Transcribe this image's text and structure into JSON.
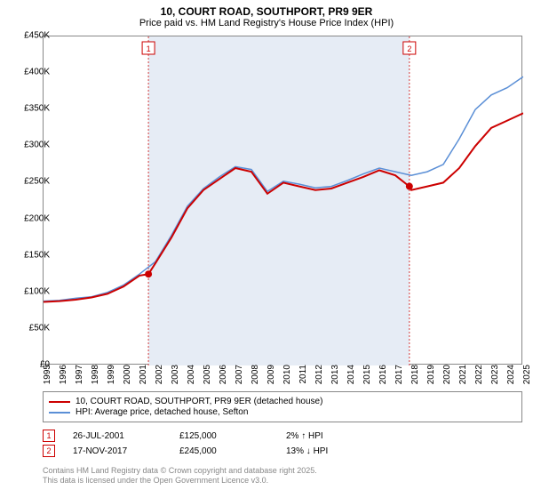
{
  "title": "10, COURT ROAD, SOUTHPORT, PR9 9ER",
  "subtitle": "Price paid vs. HM Land Registry's House Price Index (HPI)",
  "chart": {
    "type": "line",
    "x_years": [
      1995,
      1996,
      1997,
      1998,
      1999,
      2000,
      2001,
      2002,
      2003,
      2004,
      2005,
      2006,
      2007,
      2008,
      2009,
      2010,
      2011,
      2012,
      2013,
      2014,
      2015,
      2016,
      2017,
      2018,
      2019,
      2020,
      2021,
      2022,
      2023,
      2024,
      2025
    ],
    "ylim": [
      0,
      450000
    ],
    "ytick_step": 50000,
    "ytick_labels": [
      "£0",
      "£50K",
      "£100K",
      "£150K",
      "£200K",
      "£250K",
      "£300K",
      "£350K",
      "£400K",
      "£450K"
    ],
    "background_color": "#ffffff",
    "band_color": "#e6ecf5",
    "band_start_year": 2001.56,
    "band_end_year": 2017.88,
    "grid_dash": "2 2",
    "grid_color": "#d43a3a",
    "series": {
      "price_paid": {
        "label": "10, COURT ROAD, SOUTHPORT, PR9 9ER (detached house)",
        "color": "#cc0000",
        "width": 2,
        "values_by_year": {
          "1995": 87000,
          "1996": 88000,
          "1997": 90000,
          "1998": 93000,
          "1999": 98000,
          "2000": 108000,
          "2001": 123000,
          "2001.56": 125000,
          "2002": 140000,
          "2003": 175000,
          "2004": 215000,
          "2005": 240000,
          "2006": 255000,
          "2007": 270000,
          "2008": 265000,
          "2009": 235000,
          "2010": 250000,
          "2011": 245000,
          "2012": 240000,
          "2013": 242000,
          "2014": 250000,
          "2015": 258000,
          "2016": 267000,
          "2017": 260000,
          "2017.88": 245000,
          "2018": 240000,
          "2019": 245000,
          "2020": 250000,
          "2021": 270000,
          "2022": 300000,
          "2023": 325000,
          "2024": 335000,
          "2025": 345000
        }
      },
      "hpi": {
        "label": "HPI: Average price, detached house, Sefton",
        "color": "#5b8fd6",
        "width": 1.5,
        "values_by_year": {
          "1995": 88000,
          "1996": 89000,
          "1997": 92000,
          "1998": 94000,
          "1999": 100000,
          "2000": 110000,
          "2001": 125000,
          "2002": 142000,
          "2003": 178000,
          "2004": 218000,
          "2005": 242000,
          "2006": 258000,
          "2007": 272000,
          "2008": 268000,
          "2009": 238000,
          "2010": 252000,
          "2011": 248000,
          "2012": 243000,
          "2013": 245000,
          "2014": 253000,
          "2015": 262000,
          "2016": 270000,
          "2017": 265000,
          "2018": 260000,
          "2019": 265000,
          "2020": 275000,
          "2021": 310000,
          "2022": 350000,
          "2023": 370000,
          "2024": 380000,
          "2025": 395000
        }
      }
    },
    "markers": [
      {
        "label": "1",
        "year": 2001.56,
        "value": 125000,
        "color": "#cc0000"
      },
      {
        "label": "2",
        "year": 2017.88,
        "value": 245000,
        "color": "#cc0000"
      }
    ]
  },
  "legend": {
    "row1": "10, COURT ROAD, SOUTHPORT, PR9 9ER (detached house)",
    "row2": "HPI: Average price, detached house, Sefton"
  },
  "sales": [
    {
      "num": "1",
      "date": "26-JUL-2001",
      "price": "£125,000",
      "delta": "2% ↑ HPI",
      "color": "#cc0000"
    },
    {
      "num": "2",
      "date": "17-NOV-2017",
      "price": "£245,000",
      "delta": "13% ↓ HPI",
      "color": "#cc0000"
    }
  ],
  "footer1": "Contains HM Land Registry data © Crown copyright and database right 2025.",
  "footer2": "This data is licensed under the Open Government Licence v3.0."
}
